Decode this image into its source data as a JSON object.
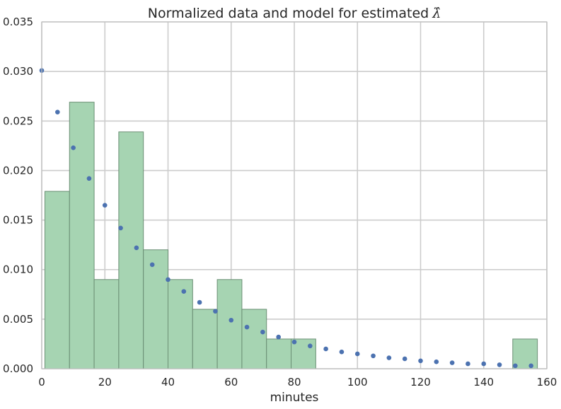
{
  "chart_data": {
    "type": "bar",
    "title": "Normalized data and model for estimated",
    "title_symbol": "λ̂",
    "xlabel": "minutes",
    "ylabel": "",
    "xlim": [
      0,
      160
    ],
    "ylim": [
      0,
      0.035
    ],
    "grid": true,
    "x_ticks": [
      "0",
      "20",
      "40",
      "60",
      "80",
      "100",
      "120",
      "140",
      "160"
    ],
    "y_ticks": [
      "0.000",
      "0.005",
      "0.010",
      "0.015",
      "0.020",
      "0.025",
      "0.030",
      "0.035"
    ],
    "x_tick_values": [
      0,
      20,
      40,
      60,
      80,
      100,
      120,
      140,
      160
    ],
    "y_tick_values": [
      0,
      0.005,
      0.01,
      0.015,
      0.02,
      0.025,
      0.03,
      0.035
    ],
    "colors": {
      "histogram_fill": "#a6d4b2",
      "histogram_edge": "#6b8f74",
      "model_points": "#4c72b0",
      "grid": "#cccccc",
      "axes_edge": "#bfbfbf"
    },
    "histogram": {
      "bin_edges": [
        1,
        8.8,
        16.6,
        24.4,
        32.2,
        40,
        47.8,
        55.6,
        63.4,
        71.2,
        79,
        86.8,
        94.6,
        102.4,
        110.2,
        118,
        125.8,
        133.6,
        141.4,
        149.2,
        157
      ],
      "values": [
        0.0179,
        0.0269,
        0.009,
        0.0239,
        0.012,
        0.009,
        0.006,
        0.009,
        0.006,
        0.003,
        0.003,
        0,
        0,
        0,
        0,
        0,
        0,
        0,
        0,
        0.003
      ]
    },
    "model": {
      "x": [
        0,
        5,
        10,
        15,
        20,
        25,
        30,
        35,
        40,
        45,
        50,
        55,
        60,
        65,
        70,
        75,
        80,
        85,
        90,
        95,
        100,
        105,
        110,
        115,
        120,
        125,
        130,
        135,
        140,
        145,
        150,
        155
      ],
      "y": [
        0.0301,
        0.0259,
        0.0223,
        0.0192,
        0.0165,
        0.0142,
        0.0122,
        0.0105,
        0.009,
        0.0078,
        0.0067,
        0.0058,
        0.0049,
        0.0042,
        0.0037,
        0.0032,
        0.0027,
        0.0023,
        0.002,
        0.0017,
        0.0015,
        0.0013,
        0.0011,
        0.001,
        0.0008,
        0.0007,
        0.0006,
        0.0005,
        0.0005,
        0.0004,
        0.0003,
        0.0003
      ]
    }
  }
}
